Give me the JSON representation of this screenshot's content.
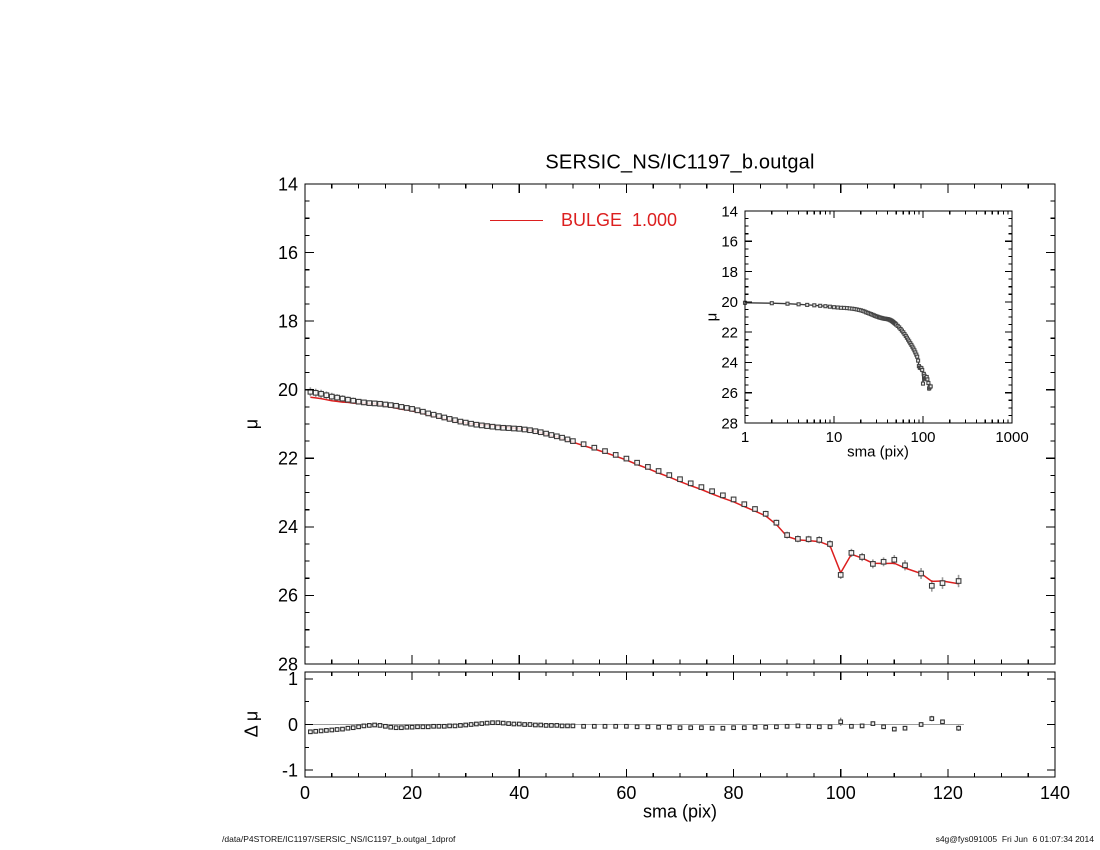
{
  "title": "SERSIC_NS/IC1197_b.outgal",
  "legend": {
    "label": "BULGE  1.000",
    "color": "#dc1f1f"
  },
  "footer": {
    "left": "/data/P4STORE/IC1197/SERSIC_NS/IC1197_b.outgal_1dprof",
    "right": "s4g@fys091005  Fri Jun  6 01:07:34 2014"
  },
  "chart_data": [
    {
      "id": "main_profile",
      "type": "scatter",
      "title": "SERSIC_NS/IC1197_b.outgal",
      "xlabel": "",
      "ylabel": "μ",
      "xlim": [
        0,
        140
      ],
      "ylim_top_bottom": [
        14,
        28
      ],
      "x_log": false,
      "x_tick_values": [
        0,
        20,
        40,
        60,
        80,
        100,
        120,
        140
      ],
      "x_tick_labels": [],
      "x_minor_step": 5,
      "y_tick_values": [
        14,
        16,
        18,
        20,
        22,
        24,
        26,
        28
      ],
      "y_tick_labels": [
        "14",
        "16",
        "18",
        "20",
        "22",
        "24",
        "26",
        "28"
      ],
      "y_minor_step": 0.5,
      "marker": "open-square",
      "model_line": {
        "label": "BULGE  1.000",
        "color": "#dc1f1f",
        "compute": "points_minus_residuals"
      },
      "points": [
        [
          1,
          20.06,
          0.13
        ],
        [
          2,
          20.09,
          0.12
        ],
        [
          3,
          20.12,
          0.12
        ],
        [
          4,
          20.16,
          0.11
        ],
        [
          5,
          20.2,
          0.11
        ],
        [
          6,
          20.23,
          0.1
        ],
        [
          7,
          20.26,
          0.1
        ],
        [
          8,
          20.29,
          0.09
        ],
        [
          9,
          20.32,
          0.09
        ],
        [
          10,
          20.35,
          0.08
        ],
        [
          11,
          20.37,
          0.08
        ],
        [
          12,
          20.39,
          0.07
        ],
        [
          13,
          20.4,
          0.07
        ],
        [
          14,
          20.41,
          0.07
        ],
        [
          15,
          20.43,
          0.06
        ],
        [
          16,
          20.45,
          0.06
        ],
        [
          17,
          20.47,
          0.06
        ],
        [
          18,
          20.5,
          0.05
        ],
        [
          19,
          20.53,
          0.05
        ],
        [
          20,
          20.56,
          0.05
        ],
        [
          21,
          20.6,
          0.05
        ],
        [
          22,
          20.64,
          0.04
        ],
        [
          23,
          20.69,
          0.04
        ],
        [
          24,
          20.73,
          0.04
        ],
        [
          25,
          20.77,
          0.04
        ],
        [
          26,
          20.81,
          0.04
        ],
        [
          27,
          20.85,
          0.04
        ],
        [
          28,
          20.89,
          0.03
        ],
        [
          29,
          20.93,
          0.03
        ],
        [
          30,
          20.96,
          0.03
        ],
        [
          31,
          20.99,
          0.03
        ],
        [
          32,
          21.02,
          0.03
        ],
        [
          33,
          21.04,
          0.03
        ],
        [
          34,
          21.06,
          0.03
        ],
        [
          35,
          21.08,
          0.03
        ],
        [
          36,
          21.1,
          0.03
        ],
        [
          37,
          21.11,
          0.03
        ],
        [
          38,
          21.12,
          0.03
        ],
        [
          39,
          21.13,
          0.03
        ],
        [
          40,
          21.14,
          0.03
        ],
        [
          41,
          21.16,
          0.03
        ],
        [
          42,
          21.18,
          0.03
        ],
        [
          43,
          21.21,
          0.03
        ],
        [
          44,
          21.24,
          0.03
        ],
        [
          45,
          21.28,
          0.03
        ],
        [
          46,
          21.32,
          0.03
        ],
        [
          47,
          21.36,
          0.03
        ],
        [
          48,
          21.4,
          0.03
        ],
        [
          49,
          21.45,
          0.03
        ],
        [
          50,
          21.5,
          0.03
        ],
        [
          52,
          21.59,
          0.04
        ],
        [
          54,
          21.69,
          0.04
        ],
        [
          56,
          21.79,
          0.05
        ],
        [
          58,
          21.9,
          0.05
        ],
        [
          60,
          22.01,
          0.05
        ],
        [
          62,
          22.13,
          0.05
        ],
        [
          64,
          22.25,
          0.05
        ],
        [
          66,
          22.37,
          0.06
        ],
        [
          68,
          22.49,
          0.06
        ],
        [
          70,
          22.61,
          0.06
        ],
        [
          72,
          22.73,
          0.06
        ],
        [
          74,
          22.84,
          0.07
        ],
        [
          76,
          22.96,
          0.07
        ],
        [
          78,
          23.08,
          0.07
        ],
        [
          80,
          23.2,
          0.08
        ],
        [
          82,
          23.34,
          0.08
        ],
        [
          84,
          23.48,
          0.08
        ],
        [
          86,
          23.62,
          0.09
        ],
        [
          88,
          23.88,
          0.09
        ],
        [
          90,
          24.24,
          0.1
        ],
        [
          92,
          24.35,
          0.1
        ],
        [
          94,
          24.36,
          0.1
        ],
        [
          96,
          24.38,
          0.11
        ],
        [
          98,
          24.5,
          0.11
        ],
        [
          100,
          25.4,
          0.12
        ],
        [
          102,
          24.76,
          0.12
        ],
        [
          104,
          24.88,
          0.12
        ],
        [
          106,
          25.08,
          0.13
        ],
        [
          108,
          25.02,
          0.13
        ],
        [
          110,
          24.96,
          0.14
        ],
        [
          112,
          25.12,
          0.15
        ],
        [
          115,
          25.36,
          0.16
        ],
        [
          117,
          25.72,
          0.17
        ],
        [
          119,
          25.64,
          0.17
        ],
        [
          122,
          25.58,
          0.18
        ]
      ]
    },
    {
      "id": "inset_log_profile",
      "type": "scatter",
      "xlabel": "sma (pix)",
      "ylabel": "μ",
      "xlim": [
        1,
        1000
      ],
      "ylim_top_bottom": [
        14,
        28
      ],
      "x_log": true,
      "x_tick_values": [
        1,
        10,
        100,
        1000
      ],
      "x_tick_labels": [
        "1",
        "10",
        "100",
        "1000"
      ],
      "y_tick_values": [
        14,
        16,
        18,
        20,
        22,
        24,
        26,
        28
      ],
      "y_tick_labels": [
        "14",
        "16",
        "18",
        "20",
        "22",
        "24",
        "26",
        "28"
      ],
      "y_minor_step": 0.5,
      "marker": "open-square",
      "connect_line": true,
      "points_ref": "main_profile"
    },
    {
      "id": "residuals",
      "type": "scatter",
      "xlabel": "sma (pix)",
      "ylabel": "Δ μ",
      "xlim": [
        0,
        140
      ],
      "ylim_top_bottom": [
        1.15,
        -1.15
      ],
      "x_log": false,
      "x_tick_values": [
        0,
        20,
        40,
        60,
        80,
        100,
        120,
        140
      ],
      "x_tick_labels": [
        "0",
        "20",
        "40",
        "60",
        "80",
        "100",
        "120",
        "140"
      ],
      "x_minor_step": 5,
      "y_tick_values": [
        1,
        0,
        -1
      ],
      "y_tick_labels": [
        "1",
        "0",
        "-1"
      ],
      "y_minor_step": 0.5,
      "marker": "open-square",
      "zero_line": {
        "color": "#9c9c9c",
        "x_from": 0,
        "x_to": 123
      },
      "points": [
        [
          1,
          -0.16,
          0.02
        ],
        [
          2,
          -0.15,
          0.02
        ],
        [
          3,
          -0.14,
          0.02
        ],
        [
          4,
          -0.13,
          0.02
        ],
        [
          5,
          -0.12,
          0.02
        ],
        [
          6,
          -0.11,
          0.02
        ],
        [
          7,
          -0.1,
          0.02
        ],
        [
          8,
          -0.08,
          0.02
        ],
        [
          9,
          -0.07,
          0.02
        ],
        [
          10,
          -0.05,
          0.02
        ],
        [
          11,
          -0.03,
          0.02
        ],
        [
          12,
          -0.02,
          0.02
        ],
        [
          13,
          -0.01,
          0.02
        ],
        [
          14,
          -0.02,
          0.02
        ],
        [
          15,
          -0.04,
          0.02
        ],
        [
          16,
          -0.06,
          0.02
        ],
        [
          17,
          -0.07,
          0.02
        ],
        [
          18,
          -0.07,
          0.02
        ],
        [
          19,
          -0.06,
          0.02
        ],
        [
          20,
          -0.06,
          0.02
        ],
        [
          21,
          -0.05,
          0.02
        ],
        [
          22,
          -0.05,
          0.02
        ],
        [
          23,
          -0.05,
          0.02
        ],
        [
          24,
          -0.04,
          0.02
        ],
        [
          25,
          -0.04,
          0.02
        ],
        [
          26,
          -0.04,
          0.02
        ],
        [
          27,
          -0.03,
          0.02
        ],
        [
          28,
          -0.03,
          0.02
        ],
        [
          29,
          -0.02,
          0.02
        ],
        [
          30,
          -0.01,
          0.02
        ],
        [
          31,
          0.0,
          0.02
        ],
        [
          32,
          0.01,
          0.02
        ],
        [
          33,
          0.02,
          0.02
        ],
        [
          34,
          0.03,
          0.02
        ],
        [
          35,
          0.04,
          0.02
        ],
        [
          36,
          0.04,
          0.02
        ],
        [
          37,
          0.03,
          0.02
        ],
        [
          38,
          0.02,
          0.02
        ],
        [
          39,
          0.01,
          0.02
        ],
        [
          40,
          0.01,
          0.02
        ],
        [
          41,
          0.0,
          0.02
        ],
        [
          42,
          0.0,
          0.02
        ],
        [
          43,
          -0.01,
          0.02
        ],
        [
          44,
          -0.01,
          0.02
        ],
        [
          45,
          -0.02,
          0.02
        ],
        [
          46,
          -0.02,
          0.02
        ],
        [
          47,
          -0.02,
          0.02
        ],
        [
          48,
          -0.03,
          0.02
        ],
        [
          49,
          -0.03,
          0.02
        ],
        [
          50,
          -0.03,
          0.02
        ],
        [
          52,
          -0.04,
          0.02
        ],
        [
          54,
          -0.04,
          0.02
        ],
        [
          56,
          -0.04,
          0.02
        ],
        [
          58,
          -0.04,
          0.02
        ],
        [
          60,
          -0.04,
          0.02
        ],
        [
          62,
          -0.05,
          0.03
        ],
        [
          64,
          -0.05,
          0.03
        ],
        [
          66,
          -0.06,
          0.03
        ],
        [
          68,
          -0.06,
          0.03
        ],
        [
          70,
          -0.07,
          0.03
        ],
        [
          72,
          -0.07,
          0.03
        ],
        [
          74,
          -0.07,
          0.03
        ],
        [
          76,
          -0.08,
          0.03
        ],
        [
          78,
          -0.08,
          0.03
        ],
        [
          80,
          -0.07,
          0.03
        ],
        [
          82,
          -0.07,
          0.03
        ],
        [
          84,
          -0.06,
          0.03
        ],
        [
          86,
          -0.06,
          0.03
        ],
        [
          88,
          -0.05,
          0.03
        ],
        [
          90,
          -0.04,
          0.03
        ],
        [
          92,
          -0.03,
          0.03
        ],
        [
          94,
          -0.04,
          0.03
        ],
        [
          96,
          -0.05,
          0.04
        ],
        [
          98,
          -0.05,
          0.04
        ],
        [
          100,
          0.06,
          0.09
        ],
        [
          102,
          -0.04,
          0.04
        ],
        [
          104,
          -0.03,
          0.04
        ],
        [
          106,
          0.02,
          0.04
        ],
        [
          108,
          -0.05,
          0.04
        ],
        [
          110,
          -0.1,
          0.05
        ],
        [
          112,
          -0.08,
          0.05
        ],
        [
          115,
          0.0,
          0.04
        ],
        [
          117,
          0.13,
          0.06
        ],
        [
          119,
          0.06,
          0.05
        ],
        [
          122,
          -0.08,
          0.06
        ]
      ]
    }
  ]
}
